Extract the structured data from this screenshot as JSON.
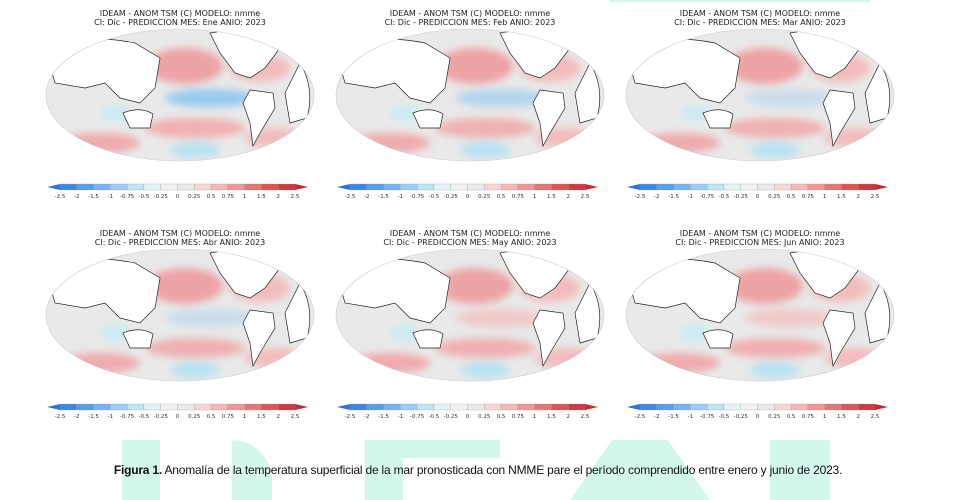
{
  "watermark": "IDEAM",
  "panels": [
    {
      "line1": "IDEAM - ANOM TSM (C) MODELO: nmme",
      "line2": "CI: Dic - PREDICCION MES: Ene ANIO: 2023",
      "cold_equator": "strong"
    },
    {
      "line1": "IDEAM - ANOM TSM (C) MODELO: nmme",
      "line2": "CI: Dic - PREDICCION MES: Feb ANIO: 2023",
      "cold_equator": "moderate"
    },
    {
      "line1": "IDEAM - ANOM TSM (C) MODELO: nmme",
      "line2": "CI: Dic - PREDICCION MES: Mar ANIO: 2023",
      "cold_equator": "weak"
    },
    {
      "line1": "IDEAM - ANOM TSM (C) MODELO: nmme",
      "line2": "CI: Dic - PREDICCION MES: Abr ANIO: 2023",
      "cold_equator": "weak"
    },
    {
      "line1": "IDEAM - ANOM TSM (C) MODELO: nmme",
      "line2": "CI: Dic - PREDICCION MES: May ANIO: 2023",
      "cold_equator": "none"
    },
    {
      "line1": "IDEAM - ANOM TSM (C) MODELO: nmme",
      "line2": "CI: Dic - PREDICCION MES: Jun ANIO: 2023",
      "cold_equator": "none"
    }
  ],
  "colorbar": {
    "ticks": [
      "-2.5",
      "-2",
      "-1.5",
      "-1",
      "-0.75",
      "-0.5",
      "-0.25",
      "0",
      "0.25",
      "0.5",
      "0.75",
      "1",
      "1.5",
      "2",
      "2.5"
    ],
    "colors": [
      "#2f72d8",
      "#3f86e4",
      "#5b9bea",
      "#7ab3ef",
      "#9dcbf3",
      "#bfe6f2",
      "#e3f4f6",
      "#f2f2f2",
      "#eaeaea",
      "#f8d6d6",
      "#f3b8b8",
      "#ec9898",
      "#e37676",
      "#da5656",
      "#cf3a3f",
      "#c42a30"
    ]
  },
  "caption": {
    "bold": "Figura 1.",
    "text": " Anomalía de la temperatura superficial de la mar pronosticada con NMME pare el período comprendido entre enero y junio de 2023."
  }
}
